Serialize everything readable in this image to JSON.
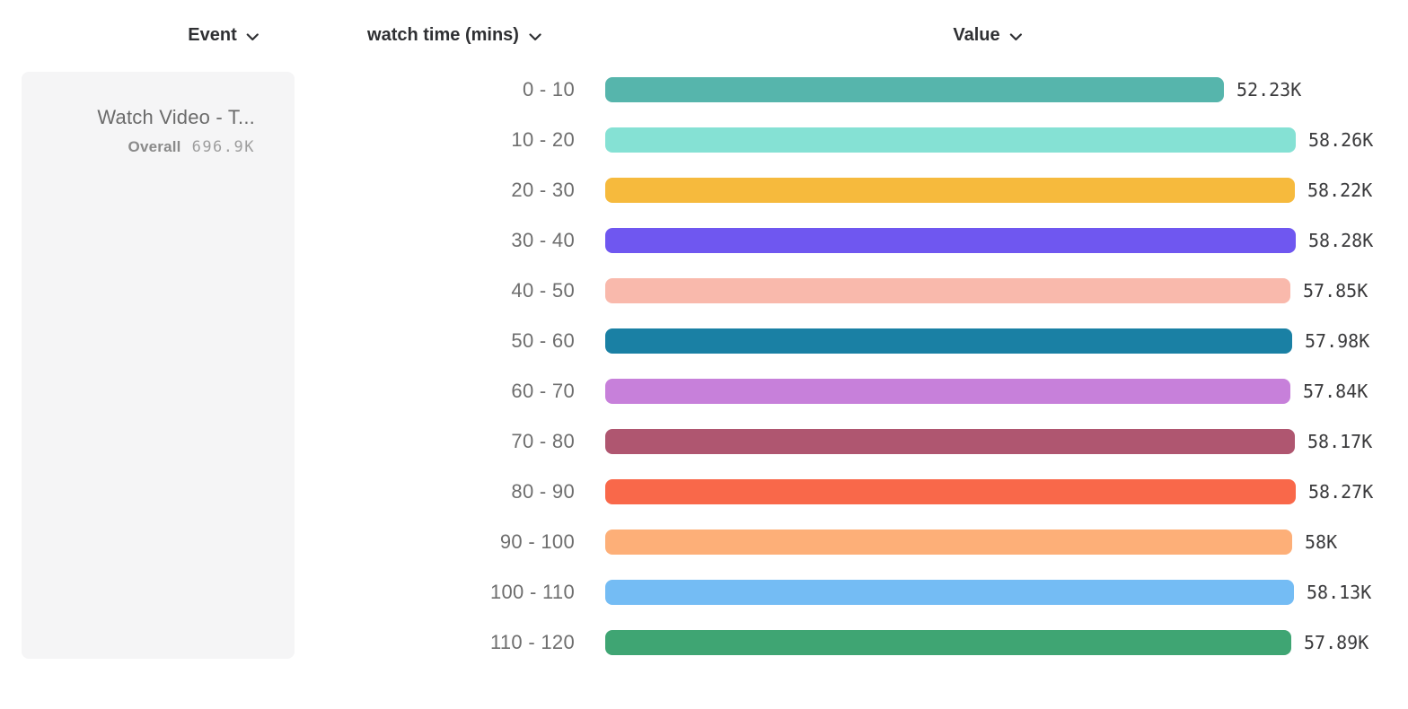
{
  "columns": {
    "event": {
      "label": "Event"
    },
    "breakdown": {
      "label": "watch time (mins)"
    },
    "value": {
      "label": "Value"
    }
  },
  "legend": {
    "event_name": "Watch Video - T...",
    "overall_label": "Overall",
    "overall_value": "696.9K"
  },
  "chart_data": {
    "type": "bar",
    "orientation": "horizontal",
    "title": "",
    "xlabel": "Value",
    "ylabel": "watch time (mins)",
    "categories": [
      "0 - 10",
      "10 - 20",
      "20 - 30",
      "30 - 40",
      "40 - 50",
      "50 - 60",
      "60 - 70",
      "70 - 80",
      "80 - 90",
      "90 - 100",
      "100 - 110",
      "110 - 120"
    ],
    "values": [
      52230,
      58260,
      58220,
      58280,
      57850,
      57980,
      57840,
      58170,
      58270,
      58000,
      58130,
      57890
    ],
    "value_labels": [
      "52.23K",
      "58.26K",
      "58.22K",
      "58.28K",
      "57.85K",
      "57.98K",
      "57.84K",
      "58.17K",
      "58.27K",
      "58K",
      "58.13K",
      "57.89K"
    ],
    "colors": [
      "#56B5AC",
      "#85E1D4",
      "#F6BA3D",
      "#6F57F0",
      "#F9B9AC",
      "#1A80A4",
      "#C780DA",
      "#AF5670",
      "#F9684A",
      "#FDAF78",
      "#74BCF4",
      "#3FA573"
    ],
    "xlim": [
      0,
      58280
    ],
    "grid": false,
    "legend_position": "left",
    "bar_label_color": "#6e6e6e",
    "value_label_color": "#3a3a3c"
  }
}
